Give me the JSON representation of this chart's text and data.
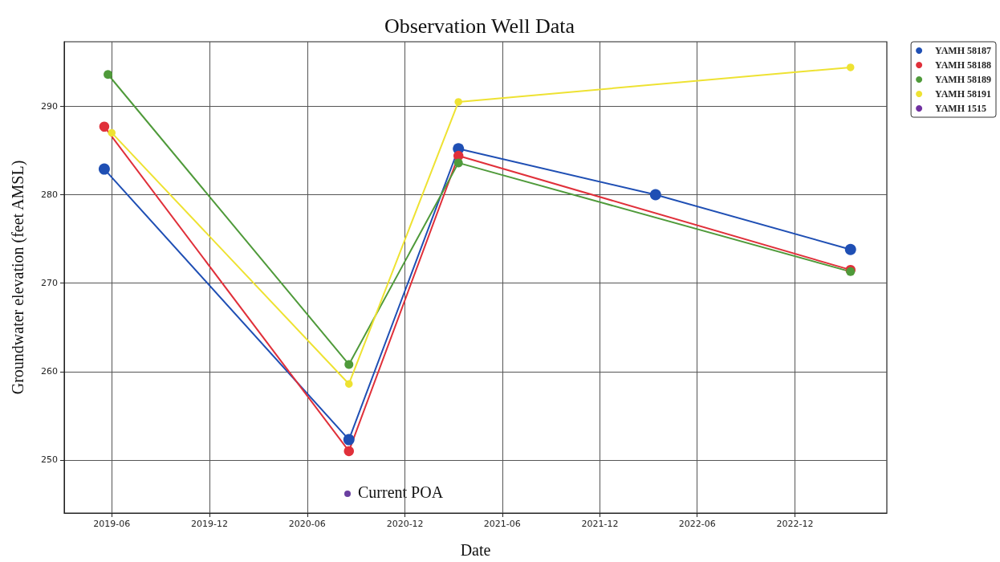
{
  "chart_data": {
    "type": "line",
    "title": "Observation Well Data",
    "xlabel": "Date",
    "ylabel": "Groundwater elevation (feet AMSL)",
    "series": [
      {
        "name": "YAMH 58187",
        "color": "#1f4fb4",
        "x": [
          "2019-05-18",
          "2020-08-18",
          "2021-03-11",
          "2022-03-15",
          "2023-03-15"
        ],
        "values": [
          282.9,
          252.3,
          285.2,
          280.0,
          273.8
        ]
      },
      {
        "name": "YAMH 58188",
        "color": "#e0303a",
        "x": [
          "2019-05-18",
          "2020-08-18",
          "2021-03-11",
          "2023-03-15"
        ],
        "values": [
          287.7,
          251.0,
          284.4,
          271.5
        ]
      },
      {
        "name": "YAMH 58189",
        "color": "#4f9a3a",
        "x": [
          "2019-05-25",
          "2020-08-18",
          "2021-03-11",
          "2023-03-15"
        ],
        "values": [
          293.6,
          260.8,
          283.6,
          271.3
        ]
      },
      {
        "name": "YAMH 58191",
        "color": "#eee232",
        "x": [
          "2019-06-01",
          "2020-08-18",
          "2021-03-11",
          "2023-03-15"
        ],
        "values": [
          287.0,
          258.6,
          290.5,
          294.4
        ]
      },
      {
        "name": "YAMH 1515",
        "color": "#7030a0"
      }
    ],
    "xlim": [
      "2019-03-04",
      "2023-05-22"
    ],
    "xticks": [
      "2019-06",
      "2019-12",
      "2020-06",
      "2020-12",
      "2021-06",
      "2021-12",
      "2022-06",
      "2022-12"
    ],
    "ylim": [
      244,
      297.3
    ],
    "yticks": [
      250,
      260,
      270,
      280,
      290
    ],
    "annotations": [
      "Current POA"
    ],
    "grid": true,
    "legend": "top right",
    "marker": "circle",
    "line_style": "solid"
  }
}
